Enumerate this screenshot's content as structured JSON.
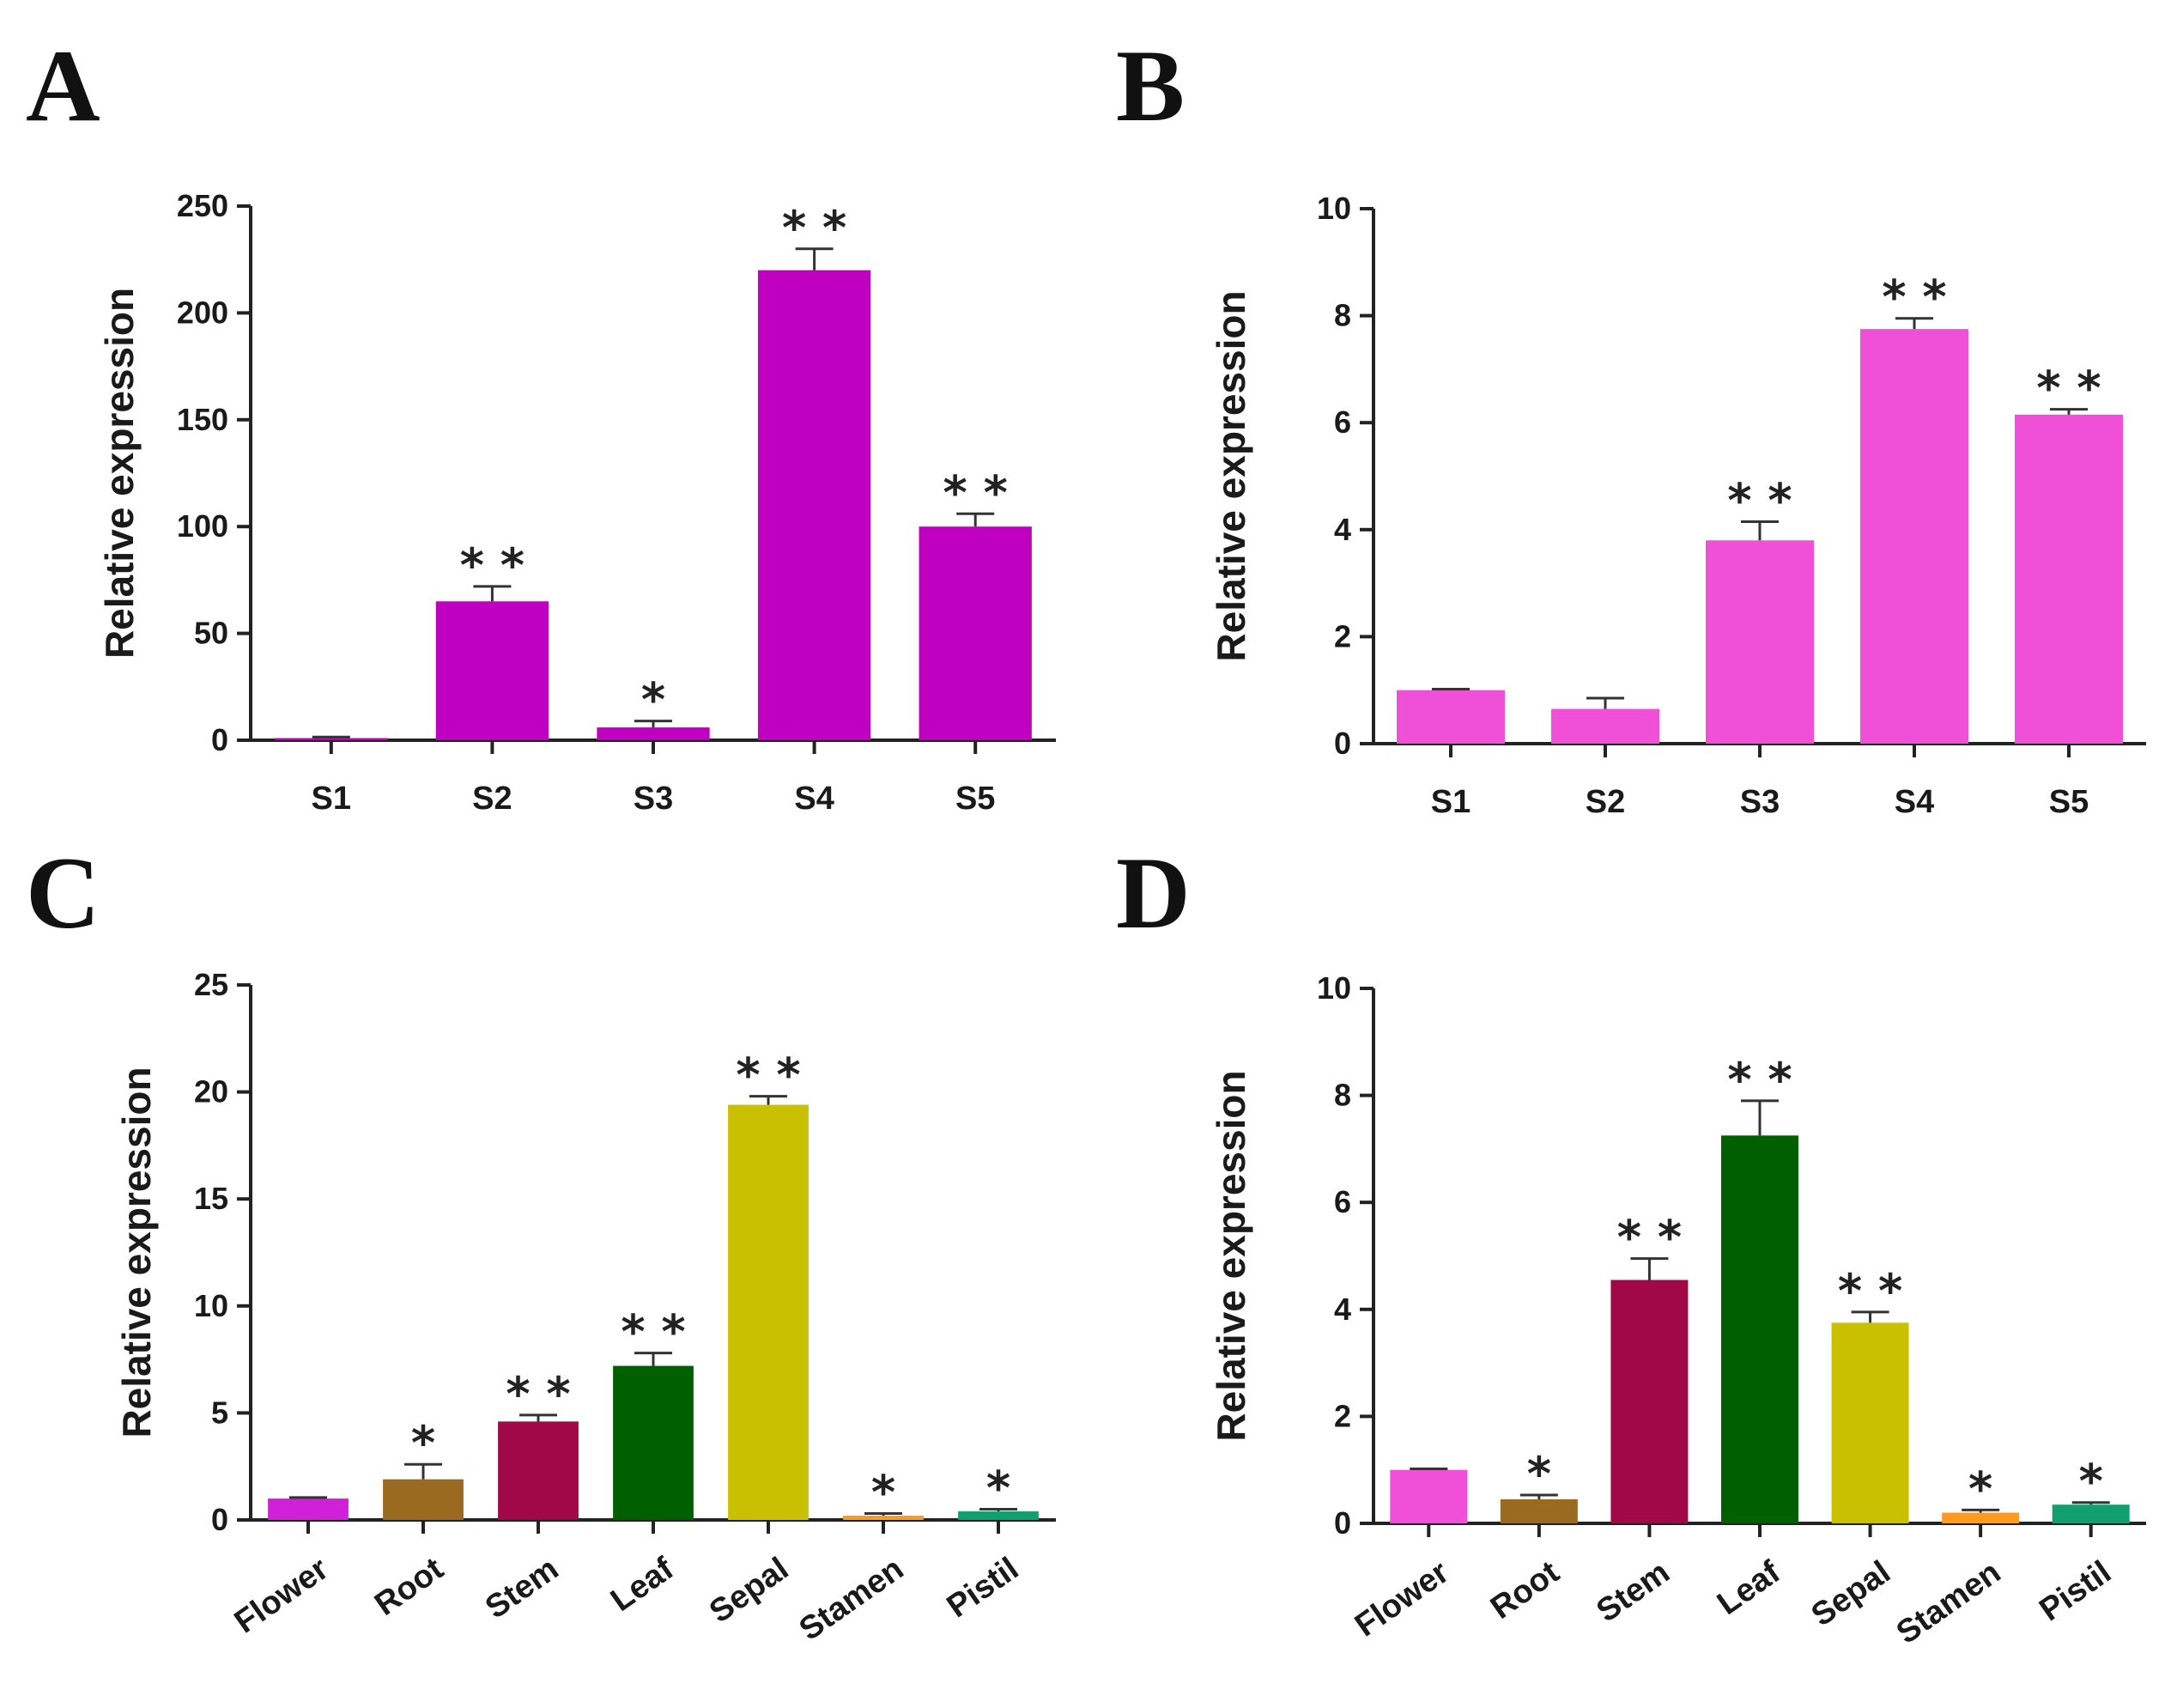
{
  "chart_data": [
    {
      "panel": "A",
      "type": "bar",
      "ylabel": "Relative expression",
      "ylim": [
        0,
        250
      ],
      "yticks": [
        0,
        50,
        100,
        150,
        200,
        250
      ],
      "categories": [
        "S1",
        "S2",
        "S3",
        "S4",
        "S5"
      ],
      "values": [
        1,
        65,
        6,
        220,
        100
      ],
      "errors": [
        0.5,
        7,
        3,
        10,
        6
      ],
      "significance": [
        "",
        "**",
        "*",
        "**",
        "**"
      ],
      "colors": [
        "#c000c0",
        "#c000c0",
        "#c000c0",
        "#c000c0",
        "#c000c0"
      ],
      "rotate_labels": false
    },
    {
      "panel": "B",
      "type": "bar",
      "ylabel": "Relative expression",
      "ylim": [
        0,
        10
      ],
      "yticks": [
        0,
        2,
        4,
        6,
        8,
        10
      ],
      "categories": [
        "S1",
        "S2",
        "S3",
        "S4",
        "S5"
      ],
      "values": [
        1,
        0.65,
        3.8,
        7.75,
        6.15
      ],
      "errors": [
        0.02,
        0.2,
        0.35,
        0.2,
        0.1
      ],
      "significance": [
        "",
        "",
        "**",
        "**",
        "**"
      ],
      "colors": [
        "#f050d8",
        "#f050d8",
        "#f050d8",
        "#f050d8",
        "#f050d8"
      ],
      "rotate_labels": false
    },
    {
      "panel": "C",
      "type": "bar",
      "ylabel": "Relative expression",
      "ylim": [
        0,
        25
      ],
      "yticks": [
        0,
        5,
        10,
        15,
        20,
        25
      ],
      "categories": [
        "Flower",
        "Root",
        "Stem",
        "Leaf",
        "Sepal",
        "Stamen",
        "Pistil"
      ],
      "values": [
        1,
        1.9,
        4.6,
        7.2,
        19.4,
        0.2,
        0.4
      ],
      "errors": [
        0.05,
        0.7,
        0.3,
        0.6,
        0.4,
        0.1,
        0.1
      ],
      "significance": [
        "",
        "*",
        "**",
        "**",
        "**",
        "*",
        "*"
      ],
      "colors": [
        "#d020d8",
        "#9a6a20",
        "#a00848",
        "#006000",
        "#c8c000",
        "#ff9a20",
        "#10a070"
      ],
      "rotate_labels": true
    },
    {
      "panel": "D",
      "type": "bar",
      "ylabel": "Relative expression",
      "ylim": [
        0,
        10
      ],
      "yticks": [
        0,
        2,
        4,
        6,
        8,
        10
      ],
      "categories": [
        "Flower",
        "Root",
        "Stem",
        "Leaf",
        "Sepal",
        "Stamen",
        "Pistil"
      ],
      "values": [
        1,
        0.45,
        4.55,
        7.25,
        3.75,
        0.2,
        0.35
      ],
      "errors": [
        0.02,
        0.08,
        0.4,
        0.65,
        0.2,
        0.05,
        0.04
      ],
      "significance": [
        "",
        "*",
        "**",
        "**",
        "**",
        "*",
        "*"
      ],
      "colors": [
        "#f050d8",
        "#9a6a20",
        "#a00848",
        "#006000",
        "#c8c000",
        "#ff9a20",
        "#10a070"
      ],
      "rotate_labels": true
    }
  ]
}
